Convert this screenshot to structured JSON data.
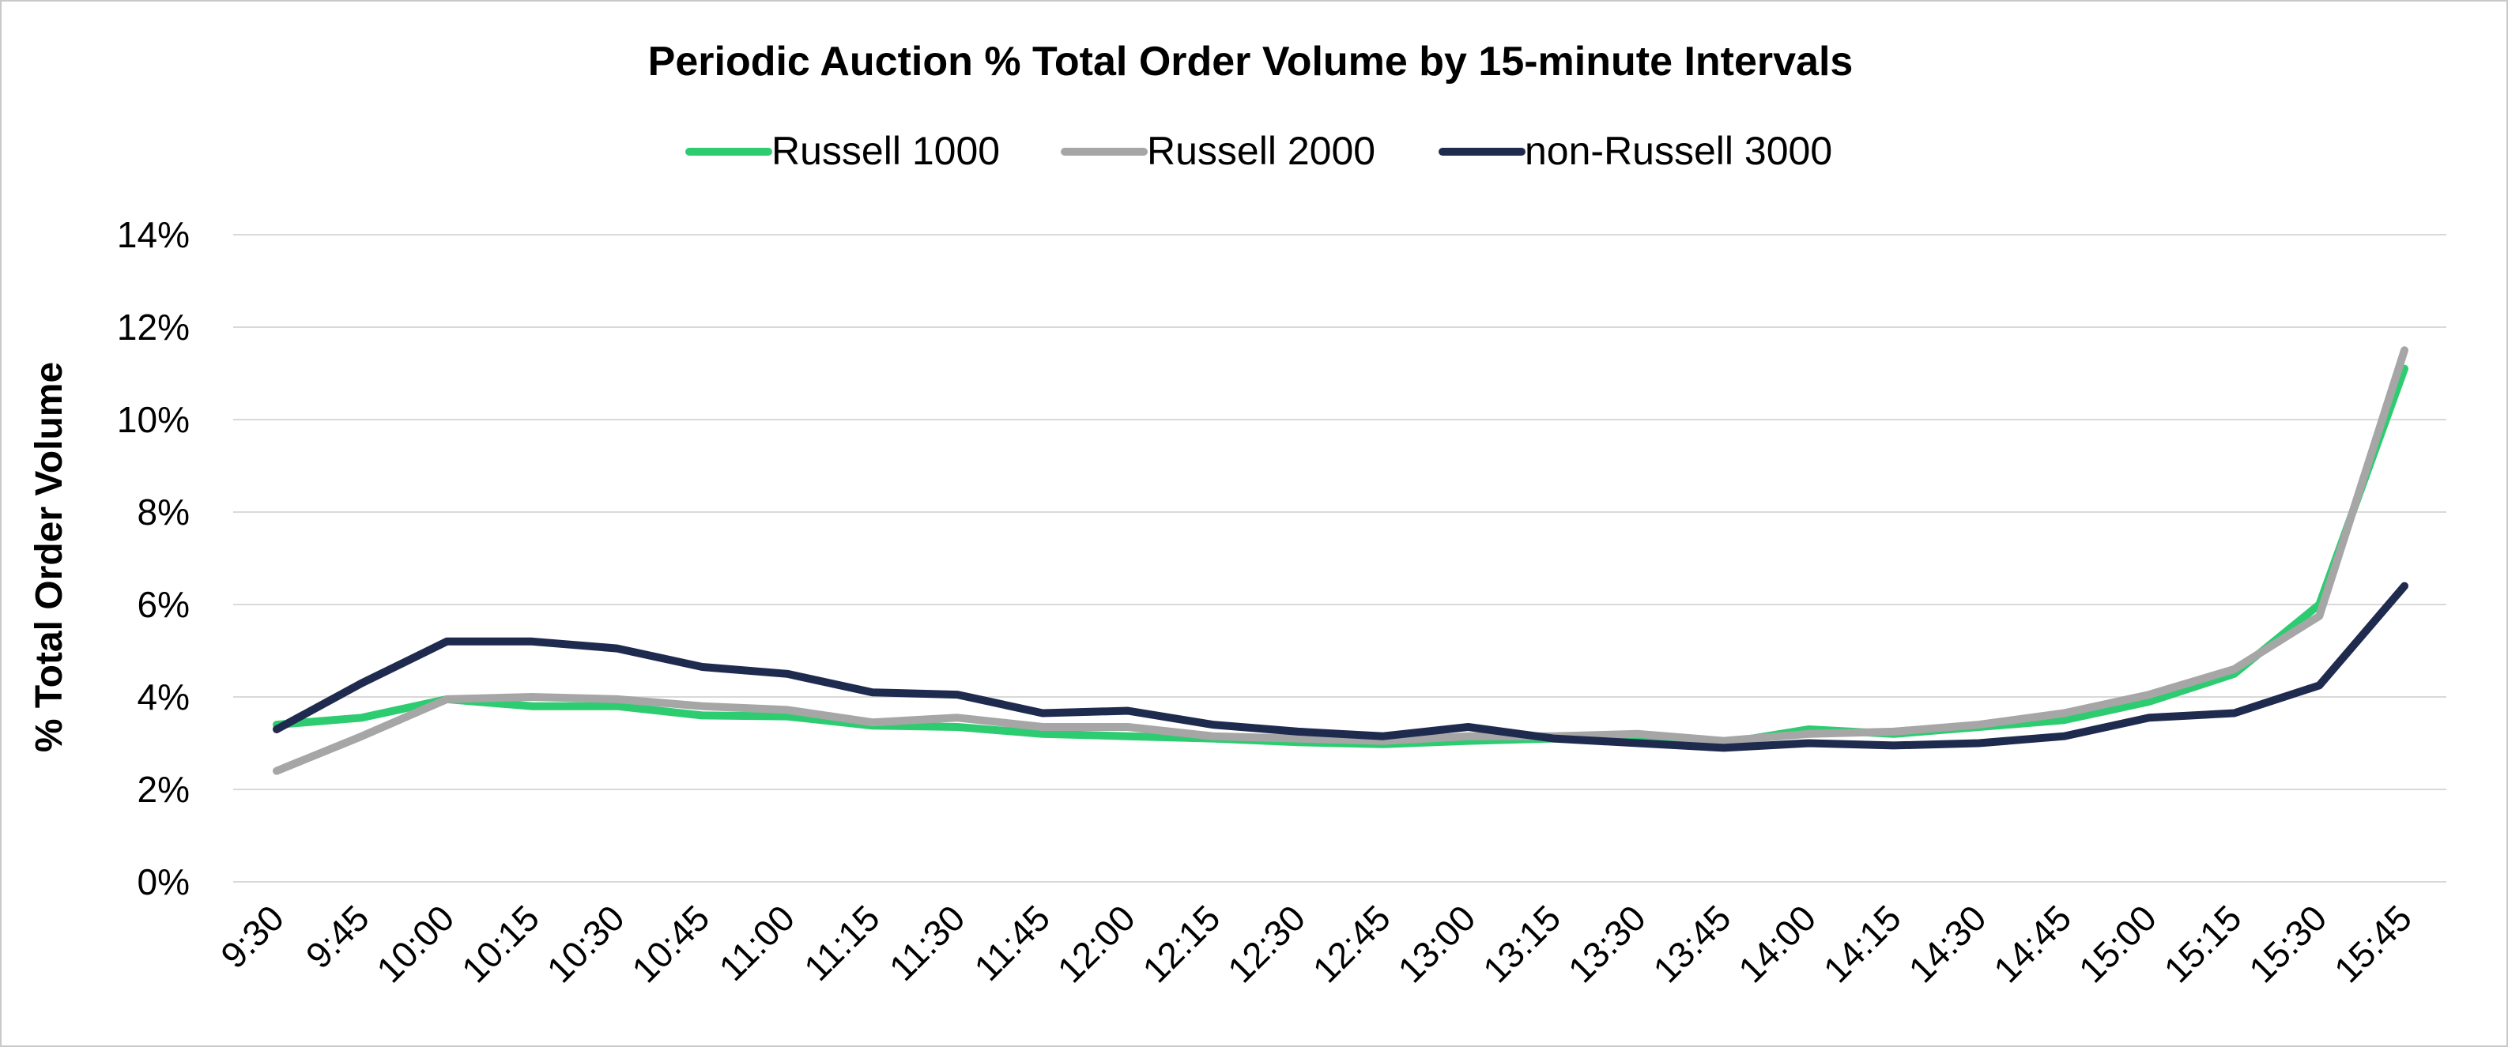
{
  "chart_data": {
    "type": "line",
    "title": "Periodic Auction % Total Order Volume by 15-minute Intervals",
    "xlabel": "",
    "ylabel": "% Total Order Volume",
    "ylim": [
      0,
      14
    ],
    "yticks": [
      0,
      2,
      4,
      6,
      8,
      10,
      12,
      14
    ],
    "ytick_labels": [
      "0%",
      "2%",
      "4%",
      "6%",
      "8%",
      "10%",
      "12%",
      "14%"
    ],
    "grid": true,
    "legend_position": "top",
    "categories": [
      "9:30",
      "9:45",
      "10:00",
      "10:15",
      "10:30",
      "10:45",
      "11:00",
      "11:15",
      "11:30",
      "11:45",
      "12:00",
      "12:15",
      "12:30",
      "12:45",
      "13:00",
      "13:15",
      "13:30",
      "13:45",
      "14:00",
      "14:15",
      "14:30",
      "14:45",
      "15:00",
      "15:15",
      "15:30",
      "15:45"
    ],
    "series": [
      {
        "name": "Russell 1000",
        "color": "#2ecc71",
        "values": [
          3.4,
          3.55,
          3.95,
          3.8,
          3.8,
          3.6,
          3.58,
          3.38,
          3.35,
          3.2,
          3.15,
          3.1,
          3.02,
          2.98,
          3.05,
          3.1,
          3.15,
          3.0,
          3.3,
          3.2,
          3.35,
          3.5,
          3.9,
          4.5,
          6.0,
          11.1
        ]
      },
      {
        "name": "Russell 2000",
        "color": "#a6a6a6",
        "values": [
          2.4,
          3.15,
          3.95,
          4.0,
          3.95,
          3.8,
          3.72,
          3.45,
          3.55,
          3.35,
          3.35,
          3.15,
          3.1,
          3.05,
          3.15,
          3.15,
          3.2,
          3.05,
          3.2,
          3.25,
          3.4,
          3.65,
          4.05,
          4.6,
          5.75,
          11.5
        ]
      },
      {
        "name": "non-Russell 3000",
        "color": "#1f2a4f",
        "values": [
          3.3,
          4.3,
          5.2,
          5.2,
          5.05,
          4.65,
          4.5,
          4.1,
          4.05,
          3.65,
          3.7,
          3.4,
          3.25,
          3.15,
          3.35,
          3.1,
          3.0,
          2.9,
          3.0,
          2.95,
          3.0,
          3.15,
          3.55,
          3.65,
          4.25,
          6.4
        ]
      }
    ]
  }
}
